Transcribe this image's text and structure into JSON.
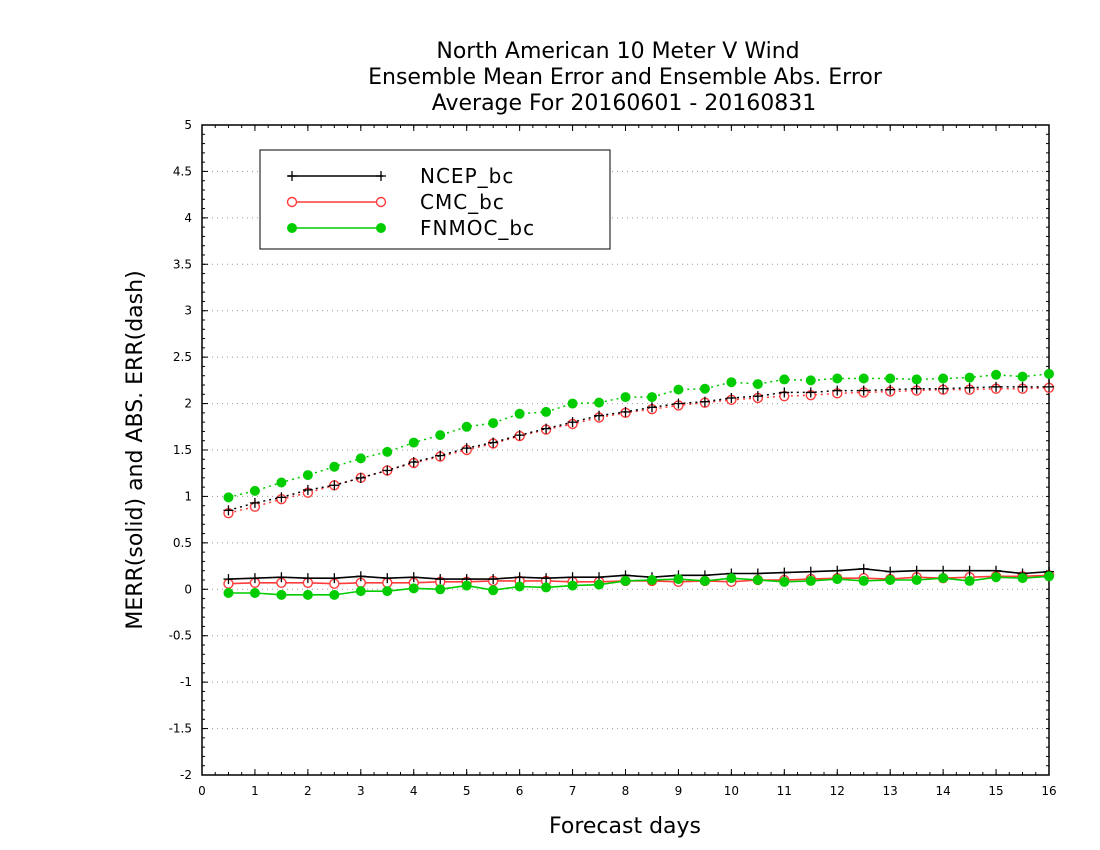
{
  "chart_data": {
    "type": "line",
    "title": [
      "North American 10 Meter V Wind",
      "Ensemble Mean Error and Ensemble Abs. Error",
      "Average For 20160601 - 20160831"
    ],
    "xlabel": "Forecast days",
    "ylabel": "MERR(solid) and ABS. ERR(dash)",
    "xlim": [
      0,
      16
    ],
    "ylim": [
      -2,
      5
    ],
    "x_ticks": [
      "0",
      "1",
      "2",
      "3",
      "4",
      "5",
      "6",
      "7",
      "8",
      "9",
      "10",
      "11",
      "12",
      "13",
      "14",
      "15",
      "16"
    ],
    "y_ticks": [
      "-2",
      "-1.5",
      "-1",
      "-0.5",
      "0",
      "0.5",
      "1",
      "1.5",
      "2",
      "2.5",
      "3",
      "3.5",
      "4",
      "4.5",
      "5"
    ],
    "grid": "horizontal dotted",
    "legend_position": "top-left",
    "x": [
      0.5,
      1,
      1.5,
      2,
      2.5,
      3,
      3.5,
      4,
      4.5,
      5,
      5.5,
      6,
      6.5,
      7,
      7.5,
      8,
      8.5,
      9,
      9.5,
      10,
      10.5,
      11,
      11.5,
      12,
      12.5,
      13,
      13.5,
      14,
      14.5,
      15,
      15.5,
      16
    ],
    "series": [
      {
        "name": "NCEP_bc",
        "color": "#000000",
        "marker": "plus",
        "mean_error": [
          0.11,
          0.12,
          0.13,
          0.12,
          0.12,
          0.14,
          0.12,
          0.13,
          0.11,
          0.11,
          0.11,
          0.13,
          0.12,
          0.13,
          0.13,
          0.15,
          0.13,
          0.15,
          0.15,
          0.17,
          0.17,
          0.18,
          0.19,
          0.2,
          0.22,
          0.19,
          0.2,
          0.2,
          0.2,
          0.2,
          0.17,
          0.19
        ],
        "abs_error": [
          0.85,
          0.93,
          0.99,
          1.07,
          1.12,
          1.2,
          1.28,
          1.37,
          1.44,
          1.52,
          1.58,
          1.66,
          1.73,
          1.8,
          1.87,
          1.91,
          1.96,
          2.0,
          2.02,
          2.06,
          2.08,
          2.12,
          2.12,
          2.14,
          2.14,
          2.15,
          2.16,
          2.16,
          2.17,
          2.18,
          2.18,
          2.18
        ]
      },
      {
        "name": "CMC_bc",
        "color": "#ff3b3b",
        "marker": "open-circle",
        "mean_error": [
          0.06,
          0.07,
          0.07,
          0.07,
          0.06,
          0.07,
          0.07,
          0.07,
          0.08,
          0.08,
          0.09,
          0.09,
          0.09,
          0.08,
          0.08,
          0.09,
          0.09,
          0.08,
          0.09,
          0.08,
          0.1,
          0.1,
          0.11,
          0.12,
          0.12,
          0.11,
          0.13,
          0.12,
          0.13,
          0.14,
          0.14,
          0.15
        ],
        "abs_error": [
          0.82,
          0.89,
          0.97,
          1.04,
          1.12,
          1.2,
          1.28,
          1.36,
          1.43,
          1.5,
          1.57,
          1.65,
          1.72,
          1.78,
          1.85,
          1.9,
          1.94,
          1.98,
          2.01,
          2.04,
          2.06,
          2.08,
          2.09,
          2.11,
          2.12,
          2.13,
          2.14,
          2.15,
          2.15,
          2.16,
          2.16,
          2.17
        ]
      },
      {
        "name": "FNMOC_bc",
        "color": "#00cc00",
        "marker": "filled-circle",
        "mean_error": [
          -0.04,
          -0.04,
          -0.06,
          -0.06,
          -0.06,
          -0.02,
          -0.02,
          0.01,
          0.0,
          0.04,
          -0.01,
          0.03,
          0.02,
          0.04,
          0.05,
          0.09,
          0.1,
          0.11,
          0.09,
          0.12,
          0.1,
          0.08,
          0.09,
          0.11,
          0.09,
          0.1,
          0.1,
          0.12,
          0.09,
          0.13,
          0.12,
          0.14
        ],
        "abs_error": [
          0.99,
          1.06,
          1.15,
          1.23,
          1.32,
          1.41,
          1.48,
          1.58,
          1.66,
          1.75,
          1.79,
          1.89,
          1.91,
          2.0,
          2.01,
          2.07,
          2.07,
          2.15,
          2.16,
          2.23,
          2.21,
          2.26,
          2.25,
          2.27,
          2.27,
          2.27,
          2.26,
          2.27,
          2.28,
          2.31,
          2.29,
          2.32
        ]
      }
    ]
  }
}
